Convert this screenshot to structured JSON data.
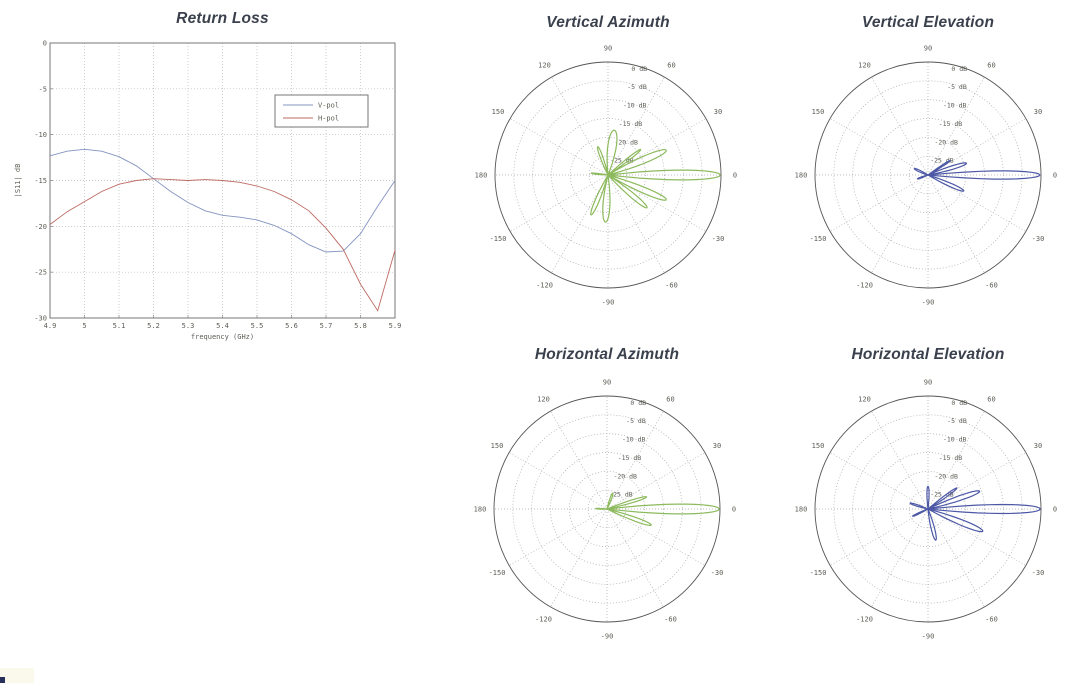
{
  "page": {
    "background": "#ffffff"
  },
  "chart_data": [
    {
      "id": "return-loss",
      "type": "line",
      "title": "Return Loss",
      "xlabel": "frequency (GHz)",
      "ylabel": "|S11| dB",
      "xlim": [
        4.9,
        5.9
      ],
      "ylim": [
        -30,
        0
      ],
      "xticks": [
        4.9,
        5.0,
        5.1,
        5.2,
        5.3,
        5.4,
        5.5,
        5.6,
        5.7,
        5.8,
        5.9
      ],
      "xtick_labels": [
        "4.9",
        "5",
        "5.1",
        "5.2",
        "5.3",
        "5.4",
        "5.5",
        "5.6",
        "5.7",
        "5.8",
        "5.9"
      ],
      "yticks": [
        0,
        -5,
        -10,
        -15,
        -20,
        -25,
        -30
      ],
      "ytick_labels": [
        "0",
        "-5",
        "-10",
        "-15",
        "-20",
        "-25",
        "-30"
      ],
      "grid": true,
      "legend": {
        "position": "upper-right-inside",
        "entries": [
          "V-pol",
          "H-pol"
        ]
      },
      "x": [
        4.9,
        4.95,
        5.0,
        5.05,
        5.1,
        5.15,
        5.2,
        5.25,
        5.3,
        5.35,
        5.4,
        5.45,
        5.5,
        5.55,
        5.6,
        5.65,
        5.7,
        5.75,
        5.8,
        5.85,
        5.9
      ],
      "series": [
        {
          "name": "V-pol",
          "color": "#8494c0",
          "values": [
            -12.3,
            -11.8,
            -11.6,
            -11.8,
            -12.4,
            -13.4,
            -14.8,
            -16.2,
            -17.4,
            -18.3,
            -18.8,
            -19.0,
            -19.3,
            -19.9,
            -20.8,
            -22.0,
            -22.8,
            -22.7,
            -20.8,
            -17.8,
            -15.0
          ]
        },
        {
          "name": "H-pol",
          "color": "#bd6a62",
          "values": [
            -19.8,
            -18.4,
            -17.3,
            -16.2,
            -15.4,
            -15.0,
            -14.8,
            -14.9,
            -15.0,
            -14.9,
            -15.0,
            -15.2,
            -15.6,
            -16.2,
            -17.1,
            -18.3,
            -20.2,
            -22.5,
            -26.3,
            -29.2,
            -22.6
          ]
        }
      ]
    },
    {
      "id": "vertical-azimuth",
      "type": "polar",
      "title": "Vertical Azimuth",
      "color": "#8cba5c",
      "r_unit": "dB",
      "rlim": [
        -30,
        0
      ],
      "rings_db": [
        0,
        -5,
        -10,
        -15,
        -20,
        -25
      ],
      "angle_labels": [
        0,
        30,
        60,
        90,
        120,
        150,
        180,
        -150,
        -120,
        -90,
        -60,
        -30
      ],
      "lobes": [
        {
          "angle": 0,
          "peak_db": -0.2,
          "width": 13
        },
        {
          "angle": 23,
          "peak_db": -13.2,
          "width": 16
        },
        {
          "angle": 38,
          "peak_db": -19.0,
          "width": 9
        },
        {
          "angle": 82,
          "peak_db": -18.0,
          "width": 28
        },
        {
          "angle": 110,
          "peak_db": -22.0,
          "width": 13
        },
        {
          "angle": 174,
          "peak_db": -25.5,
          "width": 8
        },
        {
          "angle": -23,
          "peak_db": -13.2,
          "width": 14
        },
        {
          "angle": -40,
          "peak_db": -16.5,
          "width": 14
        },
        {
          "angle": -93,
          "peak_db": -17.5,
          "width": 22
        },
        {
          "angle": -113,
          "peak_db": -18.5,
          "width": 14
        }
      ]
    },
    {
      "id": "vertical-elevation",
      "type": "polar",
      "title": "Vertical Elevation",
      "color": "#4c58a6",
      "r_unit": "dB",
      "rlim": [
        -30,
        0
      ],
      "rings_db": [
        0,
        -5,
        -10,
        -15,
        -20,
        -25
      ],
      "angle_labels": [
        0,
        30,
        60,
        90,
        120,
        150,
        180,
        -150,
        -120,
        -90,
        -60,
        -30
      ],
      "lobes": [
        {
          "angle": 0,
          "peak_db": -0.3,
          "width": 11
        },
        {
          "angle": 17,
          "peak_db": -19.3,
          "width": 13
        },
        {
          "angle": 33,
          "peak_db": -23.0,
          "width": 8
        },
        {
          "angle": -24,
          "peak_db": -19.6,
          "width": 13
        },
        {
          "angle": 155,
          "peak_db": -26.0,
          "width": 16
        },
        {
          "angle": -160,
          "peak_db": -27.0,
          "width": 12
        }
      ]
    },
    {
      "id": "horizontal-azimuth",
      "type": "polar",
      "title": "Horizontal Azimuth",
      "color": "#8cba5c",
      "r_unit": "dB",
      "rlim": [
        -30,
        0
      ],
      "rings_db": [
        0,
        -5,
        -10,
        -15,
        -20,
        -25
      ],
      "angle_labels": [
        0,
        30,
        60,
        90,
        120,
        150,
        180,
        -150,
        -120,
        -90,
        -60,
        -30
      ],
      "lobes": [
        {
          "angle": 0,
          "peak_db": -0.2,
          "width": 13
        },
        {
          "angle": 17,
          "peak_db": -19.0,
          "width": 10
        },
        {
          "angle": -20,
          "peak_db": -17.5,
          "width": 12
        },
        {
          "angle": 70,
          "peak_db": -25.5,
          "width": 14
        },
        {
          "angle": 178,
          "peak_db": -27.0,
          "width": 8
        }
      ]
    },
    {
      "id": "horizontal-elevation",
      "type": "polar",
      "title": "Horizontal Elevation",
      "color": "#4c58a6",
      "r_unit": "dB",
      "rlim": [
        -30,
        0
      ],
      "rings_db": [
        0,
        -5,
        -10,
        -15,
        -20,
        -25
      ],
      "angle_labels": [
        0,
        30,
        60,
        90,
        120,
        150,
        180,
        -150,
        -120,
        -90,
        -60,
        -30
      ],
      "lobes": [
        {
          "angle": 0,
          "peak_db": -0.2,
          "width": 12
        },
        {
          "angle": 19,
          "peak_db": -15.5,
          "width": 13
        },
        {
          "angle": 36,
          "peak_db": -20.5,
          "width": 9
        },
        {
          "angle": -22,
          "peak_db": -14.3,
          "width": 14
        },
        {
          "angle": 90,
          "peak_db": -24.0,
          "width": 14
        },
        {
          "angle": -76,
          "peak_db": -21.5,
          "width": 16
        },
        {
          "angle": 162,
          "peak_db": -25.0,
          "width": 12
        },
        {
          "angle": -155,
          "peak_db": -25.5,
          "width": 10
        }
      ]
    }
  ]
}
